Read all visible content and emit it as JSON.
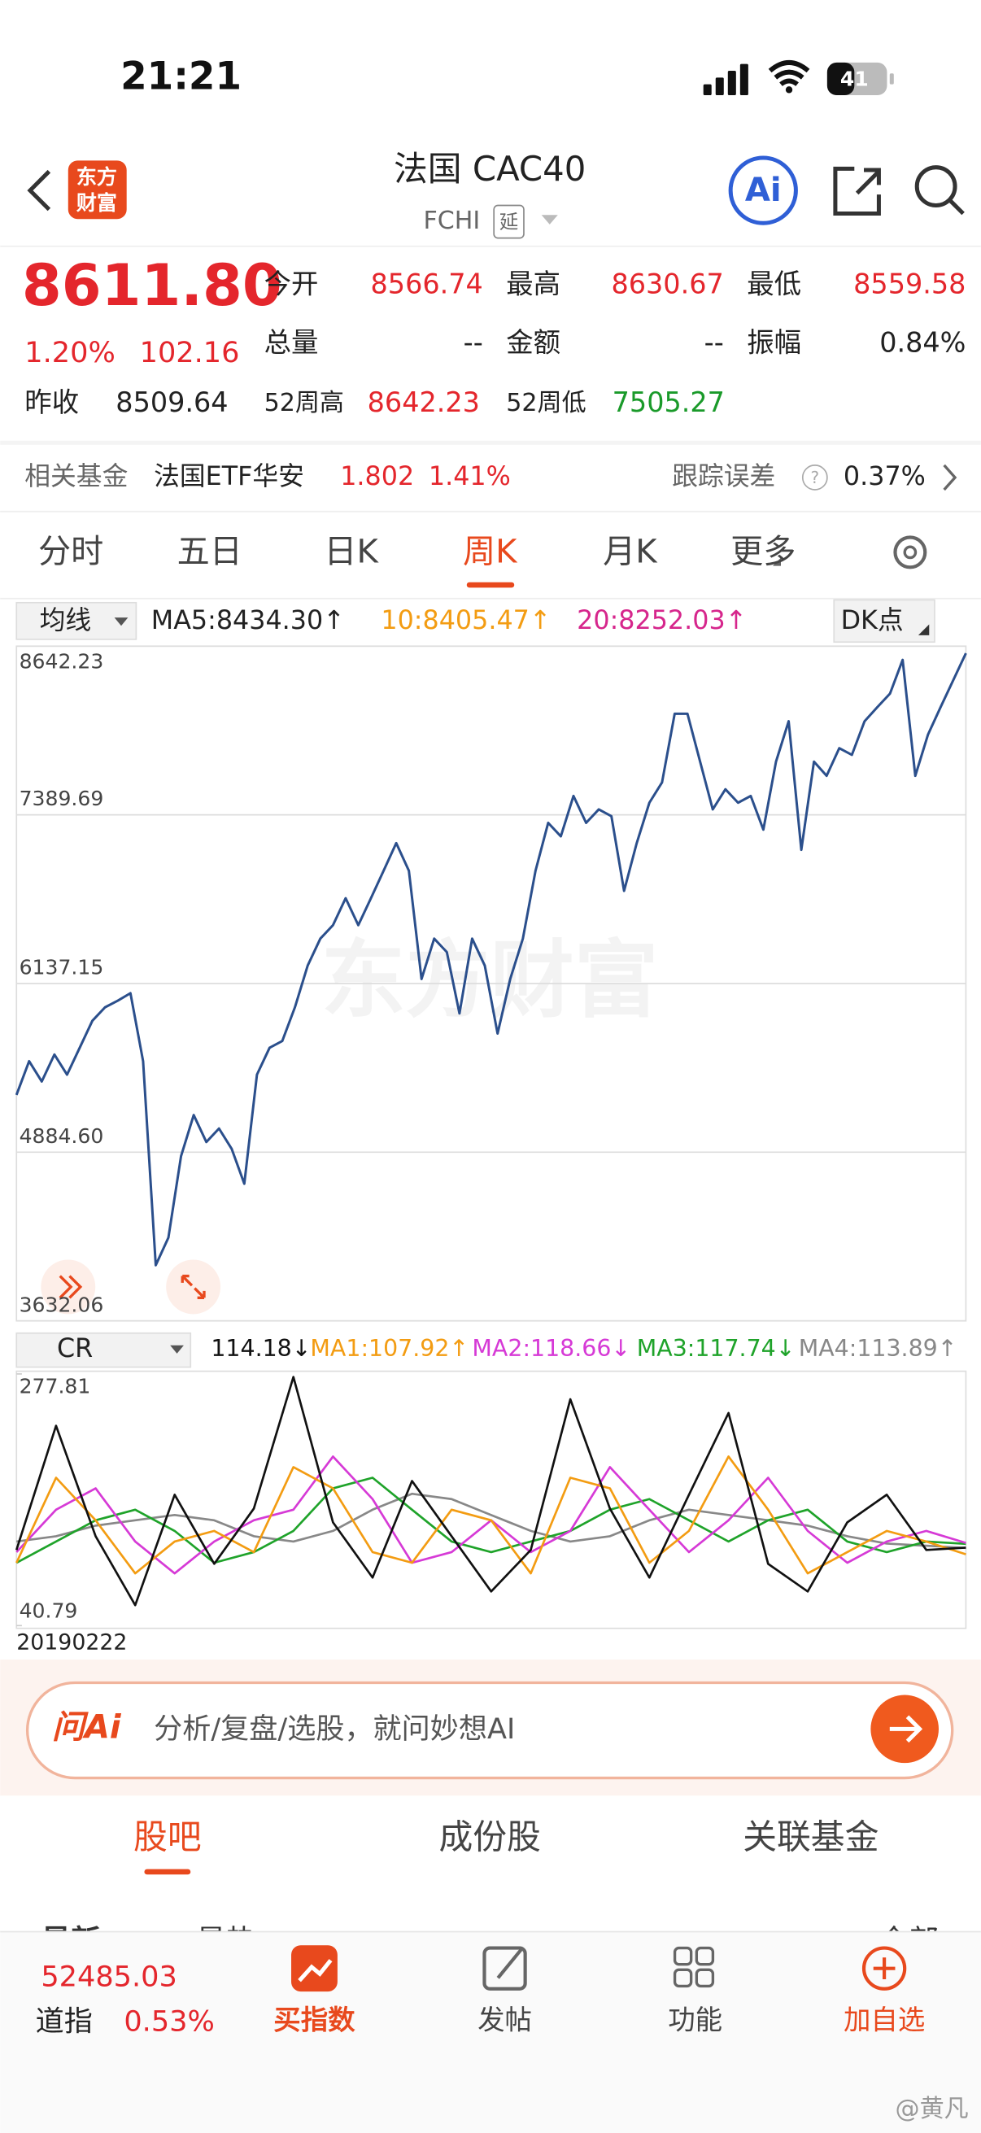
{
  "status_bar": {
    "time": "21:21",
    "battery": "41"
  },
  "header": {
    "logo_top": "东方",
    "logo_bottom": "财富",
    "title": "法国 CAC40",
    "code": "FCHI",
    "delay_badge": "延",
    "ai": "Ai"
  },
  "quote": {
    "price": "8611.80",
    "change_pct": "1.20%",
    "change": "102.16",
    "prev_close_label": "昨收",
    "prev_close": "8509.64",
    "fields": [
      {
        "label": "今开",
        "value": "8566.74"
      },
      {
        "label": "最高",
        "value": "8630.67"
      },
      {
        "label": "最低",
        "value": "8559.58"
      },
      {
        "label": "总量",
        "value": "--"
      },
      {
        "label": "金额",
        "value": "--"
      },
      {
        "label": "振幅",
        "value": "0.84%"
      }
    ],
    "week52_high_label": "52周高",
    "week52_high": "8642.23",
    "week52_low_label": "52周低",
    "week52_low": "7505.27"
  },
  "fund": {
    "label": "相关基金",
    "name": "法国ETF华安",
    "price": "1.802",
    "change": "1.41%",
    "error_label": "跟踪误差",
    "help": "?",
    "error": "0.37%"
  },
  "tabs": [
    "分时",
    "五日",
    "日K",
    "周K",
    "月K",
    "更多"
  ],
  "chart_data": [
    {
      "type": "line",
      "selector": "均线",
      "legend": [
        "MA5:8434.30↑",
        "10:8405.47↑",
        "20:8252.03↑"
      ],
      "legend_colors": [
        "#222222",
        "#f39c12",
        "#d6268c"
      ],
      "dk_button": "DK点",
      "watermark": "东方财富",
      "x_start_label": "20190222",
      "color": "#2b4f8c",
      "ylim": [
        3632.06,
        8642.23
      ],
      "yticks": [
        8642.23,
        7389.69,
        6137.15,
        {
          "value": 4884.6,
          "label": "4884.60"
        },
        3632.06
      ],
      "grid": true,
      "values": [
        5310,
        5560,
        5410,
        5610,
        5460,
        5660,
        5860,
        5960,
        6010,
        6065,
        5560,
        4045,
        4250,
        4855,
        5160,
        4960,
        5060,
        4910,
        4650,
        5460,
        5660,
        5710,
        5960,
        6270,
        6470,
        6570,
        6770,
        6570,
        6770,
        6975,
        7180,
        6975,
        6170,
        6470,
        6370,
        5915,
        6470,
        6270,
        5765,
        6170,
        6470,
        6975,
        7330,
        7230,
        7530,
        7330,
        7430,
        7380,
        6825,
        7180,
        7480,
        7630,
        8140,
        8140,
        7785,
        7430,
        7580,
        7480,
        7530,
        7280,
        7785,
        8085,
        7130,
        7785,
        7680,
        7885,
        7835,
        8085,
        8190,
        8290,
        8540,
        7680,
        7985,
        8190,
        8390,
        8590
      ]
    },
    {
      "type": "line",
      "selector": "CR",
      "legend": [
        "114.18↓",
        "MA1:107.92↑",
        "MA2:118.66↓",
        "MA3:117.74↓",
        "MA4:113.89↑"
      ],
      "ylim": [
        40.79,
        277.81
      ],
      "yticks": [
        277.81,
        40.79
      ],
      "series": [
        {
          "color": "#111111",
          "values": [
            112,
            229,
            125,
            60,
            164,
            99,
            151,
            275,
            138,
            86,
            177,
            125,
            73,
            112,
            254,
            151,
            86,
            164,
            241,
            99,
            73,
            138,
            164,
            112,
            114.18
          ]
        },
        {
          "color": "#f39c12",
          "values": [
            100,
            180,
            140,
            90,
            120,
            130,
            110,
            190,
            170,
            110,
            100,
            150,
            140,
            90,
            180,
            170,
            100,
            130,
            200,
            150,
            90,
            110,
            130,
            120,
            107.92
          ]
        },
        {
          "color": "#d63ad6",
          "values": [
            110,
            150,
            170,
            120,
            90,
            120,
            140,
            150,
            200,
            160,
            100,
            110,
            140,
            110,
            130,
            190,
            150,
            110,
            140,
            180,
            130,
            100,
            120,
            130,
            118.66
          ]
        },
        {
          "color": "#1fa32a",
          "values": [
            100,
            120,
            140,
            150,
            130,
            100,
            110,
            130,
            170,
            180,
            150,
            120,
            110,
            120,
            130,
            150,
            160,
            140,
            120,
            140,
            150,
            120,
            110,
            120,
            117.74
          ]
        },
        {
          "color": "#888888",
          "values": [
            120,
            125,
            135,
            140,
            145,
            140,
            125,
            120,
            130,
            150,
            165,
            160,
            145,
            130,
            120,
            125,
            140,
            150,
            145,
            140,
            135,
            125,
            118,
            116,
            113.89
          ]
        }
      ]
    }
  ],
  "ai_bar": {
    "brand": "问Ai",
    "placeholder": "分析/复盘/选股，就问妙想AI"
  },
  "section_tabs": [
    "股吧",
    "成份股",
    "关联基金"
  ],
  "sub_tabs": [
    "最新",
    "最热",
    "全部"
  ],
  "bottom_bar": {
    "index_value": "52485.03",
    "index_name": "道指",
    "index_change": "0.53%",
    "items": [
      "买指数",
      "发帖",
      "功能",
      "加自选"
    ]
  },
  "watermark": "@黄凡"
}
